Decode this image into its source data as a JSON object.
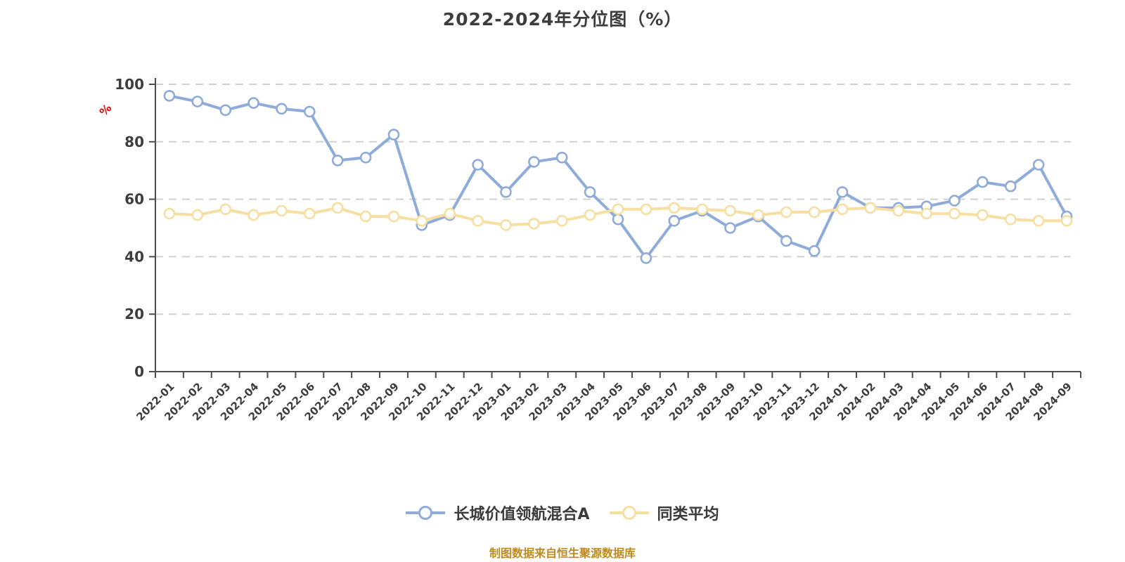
{
  "chart_data": {
    "type": "line",
    "title": "2022-2024年分位图（%）",
    "x_categories": [
      "2022-01",
      "2022-02",
      "2022-03",
      "2022-04",
      "2022-05",
      "2022-06",
      "2022-07",
      "2022-08",
      "2022-09",
      "2022-10",
      "2022-11",
      "2022-12",
      "2023-01",
      "2023-02",
      "2023-03",
      "2023-04",
      "2023-05",
      "2023-06",
      "2023-07",
      "2023-08",
      "2023-09",
      "2023-10",
      "2023-11",
      "2023-12",
      "2024-01",
      "2024-02",
      "2024-03",
      "2024-04",
      "2024-05",
      "2024-06",
      "2024-07",
      "2024-08",
      "2024-09"
    ],
    "series": [
      {
        "name": "长城价值领航混合A",
        "color": "#8fabd9",
        "values": [
          96,
          94,
          91,
          93.5,
          91.5,
          90.5,
          73.5,
          74.5,
          82.5,
          51,
          54.5,
          72,
          62.5,
          73,
          74.5,
          62.5,
          53,
          39.5,
          52.5,
          56,
          50,
          54,
          45.5,
          42,
          62.5,
          57,
          57,
          57.5,
          59.5,
          66,
          64.5,
          72,
          54
        ]
      },
      {
        "name": "同类平均",
        "color": "#f7dfa2",
        "values": [
          55,
          54.5,
          56.5,
          54.5,
          56,
          55,
          57,
          54,
          54,
          52.5,
          55,
          52.5,
          51,
          51.5,
          52.5,
          54.5,
          56.5,
          56.5,
          57,
          56.5,
          56,
          54.5,
          55.5,
          55.5,
          56.5,
          57,
          56,
          55,
          55,
          54.5,
          53,
          52.5,
          52.5
        ]
      }
    ],
    "y_axis": {
      "unit": "%",
      "min": 0,
      "max": 100,
      "ticks": [
        0,
        20,
        40,
        60,
        80,
        100
      ]
    },
    "grid": "horizontal dashed gridlines",
    "legend_position": "bottom"
  },
  "legend": {
    "items": [
      {
        "label": "长城价值领航混合A",
        "color": "#8fabd9"
      },
      {
        "label": "同类平均",
        "color": "#f7dfa2"
      }
    ]
  },
  "footer": {
    "note": "制图数据来自恒生聚源数据库"
  },
  "style": {
    "axis_color": "#4d4d4d",
    "gridline_color": "#d1d1d1",
    "label_color": "#3d3d3d",
    "unit_color": "#e60000"
  }
}
